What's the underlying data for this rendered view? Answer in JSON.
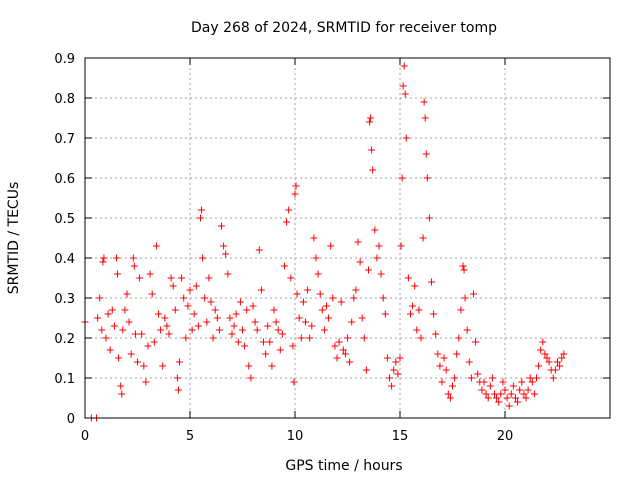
{
  "chart_data": {
    "type": "scatter",
    "title": "Day 268 of 2024, SRMTID for receiver tomp",
    "xlabel": "GPS time / hours",
    "ylabel": "SRMTID / TECUs",
    "xlim": [
      0,
      25
    ],
    "ylim": [
      0,
      0.9
    ],
    "xticks": [
      0,
      5,
      10,
      15,
      20
    ],
    "xtick_labels": [
      "0",
      "5",
      "10",
      "15",
      "20"
    ],
    "yticks": [
      0,
      0.1,
      0.2,
      0.3,
      0.4,
      0.5,
      0.6,
      0.7,
      0.8,
      0.9
    ],
    "ytick_labels": [
      "0",
      "0.1",
      "0.2",
      "0.3",
      "0.4",
      "0.5",
      "0.6",
      "0.7",
      "0.8",
      "0.9"
    ],
    "grid": true,
    "marker": "plus",
    "color": "#ff0000",
    "series": [
      {
        "name": "SRMTID",
        "points": [
          [
            0.0,
            0.24
          ],
          [
            0.3,
            0.0
          ],
          [
            0.55,
            0.0
          ],
          [
            0.6,
            0.25
          ],
          [
            0.7,
            0.3
          ],
          [
            0.8,
            0.22
          ],
          [
            0.85,
            0.39
          ],
          [
            0.9,
            0.4
          ],
          [
            1.0,
            0.2
          ],
          [
            1.1,
            0.26
          ],
          [
            1.2,
            0.17
          ],
          [
            1.3,
            0.27
          ],
          [
            1.4,
            0.23
          ],
          [
            1.5,
            0.4
          ],
          [
            1.55,
            0.36
          ],
          [
            1.6,
            0.15
          ],
          [
            1.7,
            0.08
          ],
          [
            1.75,
            0.06
          ],
          [
            1.8,
            0.22
          ],
          [
            1.9,
            0.27
          ],
          [
            2.0,
            0.31
          ],
          [
            2.1,
            0.24
          ],
          [
            2.2,
            0.16
          ],
          [
            2.3,
            0.4
          ],
          [
            2.35,
            0.38
          ],
          [
            2.4,
            0.21
          ],
          [
            2.5,
            0.14
          ],
          [
            2.6,
            0.35
          ],
          [
            2.7,
            0.21
          ],
          [
            2.8,
            0.13
          ],
          [
            2.9,
            0.09
          ],
          [
            3.0,
            0.18
          ],
          [
            3.1,
            0.36
          ],
          [
            3.2,
            0.31
          ],
          [
            3.3,
            0.19
          ],
          [
            3.4,
            0.43
          ],
          [
            3.5,
            0.26
          ],
          [
            3.6,
            0.22
          ],
          [
            3.7,
            0.13
          ],
          [
            3.8,
            0.25
          ],
          [
            3.9,
            0.23
          ],
          [
            4.0,
            0.21
          ],
          [
            4.1,
            0.35
          ],
          [
            4.2,
            0.33
          ],
          [
            4.3,
            0.27
          ],
          [
            4.4,
            0.1
          ],
          [
            4.45,
            0.07
          ],
          [
            4.5,
            0.14
          ],
          [
            4.6,
            0.35
          ],
          [
            4.7,
            0.3
          ],
          [
            4.8,
            0.2
          ],
          [
            4.9,
            0.28
          ],
          [
            5.0,
            0.32
          ],
          [
            5.1,
            0.22
          ],
          [
            5.2,
            0.26
          ],
          [
            5.3,
            0.33
          ],
          [
            5.4,
            0.23
          ],
          [
            5.5,
            0.5
          ],
          [
            5.55,
            0.52
          ],
          [
            5.6,
            0.4
          ],
          [
            5.7,
            0.3
          ],
          [
            5.8,
            0.24
          ],
          [
            5.9,
            0.35
          ],
          [
            6.0,
            0.29
          ],
          [
            6.1,
            0.2
          ],
          [
            6.2,
            0.27
          ],
          [
            6.3,
            0.25
          ],
          [
            6.4,
            0.22
          ],
          [
            6.5,
            0.48
          ],
          [
            6.6,
            0.43
          ],
          [
            6.7,
            0.41
          ],
          [
            6.8,
            0.36
          ],
          [
            6.9,
            0.25
          ],
          [
            7.0,
            0.21
          ],
          [
            7.1,
            0.23
          ],
          [
            7.2,
            0.26
          ],
          [
            7.3,
            0.19
          ],
          [
            7.4,
            0.29
          ],
          [
            7.5,
            0.22
          ],
          [
            7.6,
            0.18
          ],
          [
            7.7,
            0.27
          ],
          [
            7.8,
            0.13
          ],
          [
            7.9,
            0.1
          ],
          [
            8.0,
            0.28
          ],
          [
            8.1,
            0.24
          ],
          [
            8.2,
            0.22
          ],
          [
            8.3,
            0.42
          ],
          [
            8.4,
            0.32
          ],
          [
            8.5,
            0.19
          ],
          [
            8.6,
            0.16
          ],
          [
            8.7,
            0.23
          ],
          [
            8.8,
            0.19
          ],
          [
            8.9,
            0.13
          ],
          [
            9.0,
            0.27
          ],
          [
            9.1,
            0.24
          ],
          [
            9.2,
            0.22
          ],
          [
            9.3,
            0.17
          ],
          [
            9.4,
            0.21
          ],
          [
            9.5,
            0.38
          ],
          [
            9.6,
            0.49
          ],
          [
            9.7,
            0.52
          ],
          [
            9.8,
            0.35
          ],
          [
            9.9,
            0.18
          ],
          [
            9.95,
            0.09
          ],
          [
            10.0,
            0.56
          ],
          [
            10.05,
            0.58
          ],
          [
            10.1,
            0.31
          ],
          [
            10.2,
            0.25
          ],
          [
            10.3,
            0.2
          ],
          [
            10.4,
            0.29
          ],
          [
            10.5,
            0.24
          ],
          [
            10.6,
            0.32
          ],
          [
            10.7,
            0.2
          ],
          [
            10.8,
            0.23
          ],
          [
            10.9,
            0.45
          ],
          [
            11.0,
            0.4
          ],
          [
            11.1,
            0.36
          ],
          [
            11.2,
            0.31
          ],
          [
            11.3,
            0.27
          ],
          [
            11.4,
            0.22
          ],
          [
            11.5,
            0.28
          ],
          [
            11.6,
            0.25
          ],
          [
            11.7,
            0.43
          ],
          [
            11.8,
            0.3
          ],
          [
            11.9,
            0.18
          ],
          [
            12.0,
            0.15
          ],
          [
            12.1,
            0.19
          ],
          [
            12.2,
            0.29
          ],
          [
            12.3,
            0.17
          ],
          [
            12.4,
            0.16
          ],
          [
            12.5,
            0.2
          ],
          [
            12.6,
            0.14
          ],
          [
            12.7,
            0.24
          ],
          [
            12.8,
            0.3
          ],
          [
            12.9,
            0.32
          ],
          [
            13.0,
            0.44
          ],
          [
            13.1,
            0.39
          ],
          [
            13.2,
            0.25
          ],
          [
            13.3,
            0.2
          ],
          [
            13.4,
            0.12
          ],
          [
            13.5,
            0.37
          ],
          [
            13.55,
            0.74
          ],
          [
            13.6,
            0.75
          ],
          [
            13.65,
            0.67
          ],
          [
            13.7,
            0.62
          ],
          [
            13.8,
            0.47
          ],
          [
            13.9,
            0.4
          ],
          [
            14.0,
            0.43
          ],
          [
            14.1,
            0.36
          ],
          [
            14.2,
            0.3
          ],
          [
            14.3,
            0.26
          ],
          [
            14.4,
            0.15
          ],
          [
            14.5,
            0.1
          ],
          [
            14.6,
            0.08
          ],
          [
            14.7,
            0.12
          ],
          [
            14.8,
            0.14
          ],
          [
            14.9,
            0.11
          ],
          [
            15.0,
            0.15
          ],
          [
            15.05,
            0.43
          ],
          [
            15.1,
            0.6
          ],
          [
            15.15,
            0.83
          ],
          [
            15.2,
            0.88
          ],
          [
            15.25,
            0.81
          ],
          [
            15.3,
            0.7
          ],
          [
            15.4,
            0.35
          ],
          [
            15.5,
            0.26
          ],
          [
            15.6,
            0.28
          ],
          [
            15.7,
            0.33
          ],
          [
            15.8,
            0.22
          ],
          [
            15.9,
            0.27
          ],
          [
            16.0,
            0.2
          ],
          [
            16.1,
            0.45
          ],
          [
            16.15,
            0.79
          ],
          [
            16.2,
            0.75
          ],
          [
            16.25,
            0.66
          ],
          [
            16.3,
            0.6
          ],
          [
            16.4,
            0.5
          ],
          [
            16.5,
            0.34
          ],
          [
            16.6,
            0.26
          ],
          [
            16.7,
            0.21
          ],
          [
            16.8,
            0.16
          ],
          [
            16.9,
            0.13
          ],
          [
            17.0,
            0.09
          ],
          [
            17.1,
            0.15
          ],
          [
            17.2,
            0.12
          ],
          [
            17.3,
            0.06
          ],
          [
            17.4,
            0.05
          ],
          [
            17.5,
            0.08
          ],
          [
            17.6,
            0.1
          ],
          [
            17.7,
            0.16
          ],
          [
            17.8,
            0.2
          ],
          [
            17.9,
            0.27
          ],
          [
            18.0,
            0.38
          ],
          [
            18.05,
            0.37
          ],
          [
            18.1,
            0.3
          ],
          [
            18.2,
            0.22
          ],
          [
            18.3,
            0.14
          ],
          [
            18.4,
            0.1
          ],
          [
            18.5,
            0.31
          ],
          [
            18.6,
            0.19
          ],
          [
            18.7,
            0.11
          ],
          [
            18.8,
            0.09
          ],
          [
            18.9,
            0.07
          ],
          [
            19.0,
            0.09
          ],
          [
            19.1,
            0.06
          ],
          [
            19.2,
            0.05
          ],
          [
            19.3,
            0.08
          ],
          [
            19.4,
            0.1
          ],
          [
            19.5,
            0.06
          ],
          [
            19.6,
            0.05
          ],
          [
            19.7,
            0.04
          ],
          [
            19.8,
            0.06
          ],
          [
            19.9,
            0.09
          ],
          [
            20.0,
            0.07
          ],
          [
            20.1,
            0.05
          ],
          [
            20.2,
            0.03
          ],
          [
            20.3,
            0.06
          ],
          [
            20.4,
            0.08
          ],
          [
            20.5,
            0.05
          ],
          [
            20.6,
            0.04
          ],
          [
            20.7,
            0.07
          ],
          [
            20.8,
            0.09
          ],
          [
            20.9,
            0.06
          ],
          [
            21.0,
            0.05
          ],
          [
            21.1,
            0.07
          ],
          [
            21.2,
            0.1
          ],
          [
            21.3,
            0.09
          ],
          [
            21.4,
            0.06
          ],
          [
            21.5,
            0.1
          ],
          [
            21.6,
            0.13
          ],
          [
            21.7,
            0.17
          ],
          [
            21.8,
            0.19
          ],
          [
            21.9,
            0.16
          ],
          [
            22.0,
            0.15
          ],
          [
            22.1,
            0.14
          ],
          [
            22.2,
            0.12
          ],
          [
            22.3,
            0.1
          ],
          [
            22.4,
            0.12
          ],
          [
            22.5,
            0.14
          ],
          [
            22.6,
            0.13
          ],
          [
            22.7,
            0.15
          ],
          [
            22.8,
            0.16
          ]
        ]
      }
    ]
  }
}
